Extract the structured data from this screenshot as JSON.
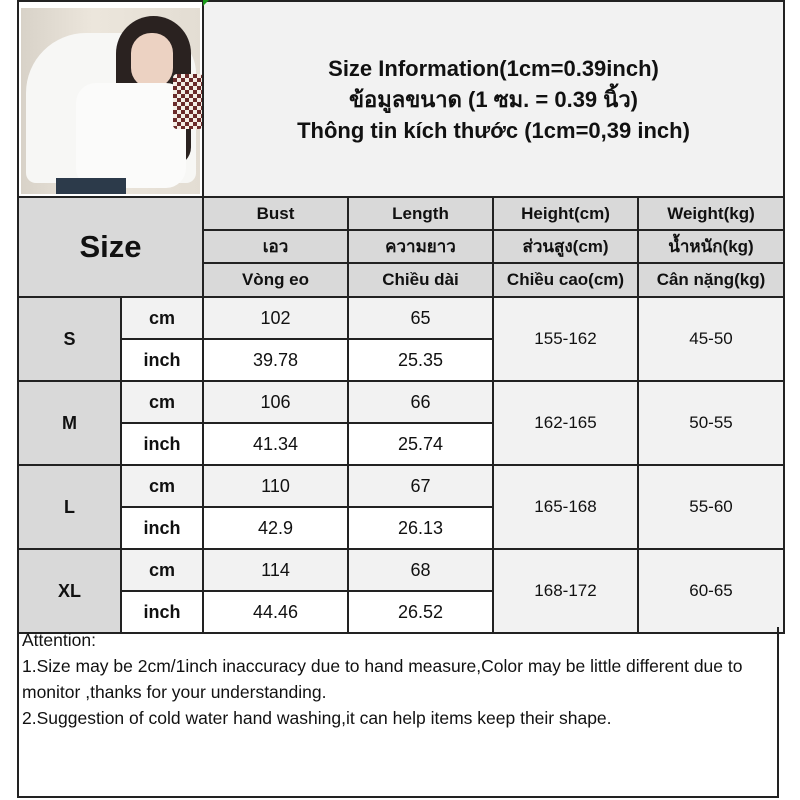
{
  "title": {
    "line1": "Size Information(1cm=0.39inch)",
    "line2": "ข้อมูลขนาด (1 ซม. = 0.39 นิ้ว)",
    "line3": "Thông tin kích thước (1cm=0,39 inch)"
  },
  "size_header": "Size",
  "columns": [
    {
      "en": "Bust",
      "th": "เอว",
      "vi": "Vòng eo"
    },
    {
      "en": "Length",
      "th": "ความยาว",
      "vi": "Chiều dài"
    },
    {
      "en": "Height(cm)",
      "th": "ส่วนสูง(cm)",
      "vi": "Chiều cao(cm)"
    },
    {
      "en": "Weight(kg)",
      "th": "น้ำหนัก(kg)",
      "vi": "Cân nặng(kg)"
    }
  ],
  "units": {
    "cm": "cm",
    "inch": "inch"
  },
  "rows": [
    {
      "size": "S",
      "cm": {
        "bust": "102",
        "length": "65"
      },
      "inch": {
        "bust": "39.78",
        "length": "25.35"
      },
      "height": "155-162",
      "weight": "45-50"
    },
    {
      "size": "M",
      "cm": {
        "bust": "106",
        "length": "66"
      },
      "inch": {
        "bust": "41.34",
        "length": "25.74"
      },
      "height": "162-165",
      "weight": "50-55"
    },
    {
      "size": "L",
      "cm": {
        "bust": "110",
        "length": "67"
      },
      "inch": {
        "bust": "42.9",
        "length": "26.13"
      },
      "height": "165-168",
      "weight": "55-60"
    },
    {
      "size": "XL",
      "cm": {
        "bust": "114",
        "length": "68"
      },
      "inch": {
        "bust": "44.46",
        "length": "26.52"
      },
      "height": "168-172",
      "weight": "60-65"
    }
  ],
  "attention": {
    "heading": "Attention:",
    "line1": "1.Size may be 2cm/1inch inaccuracy due to hand measure,Color may be little different due to monitor ,thanks for your understanding.",
    "line2": "2.Suggestion of cold water hand washing,it can help items keep their shape."
  },
  "colors": {
    "header_gray": "#d9d9d9",
    "light_gray": "#f2f2f2",
    "border": "#222222"
  }
}
